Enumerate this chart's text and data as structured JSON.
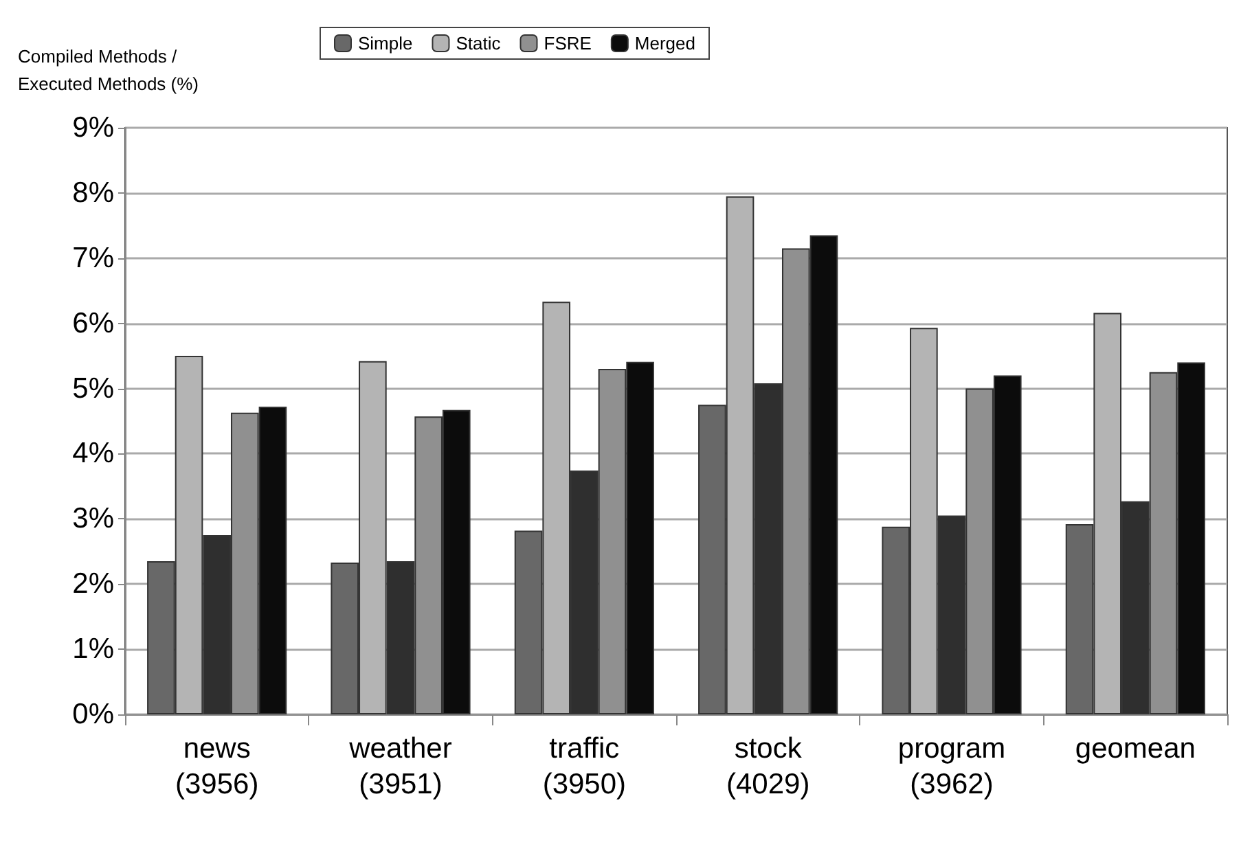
{
  "chart_data": {
    "type": "bar",
    "ylabel": "Compiled Methods /\nExecuted Methods (%)",
    "categories": [
      "news\n(3956)",
      "weather\n(3951)",
      "traffic\n(3950)",
      "stock\n(4029)",
      "program\n(3962)",
      "geomean"
    ],
    "series": [
      {
        "name": "Simple",
        "color": "#686868",
        "values": [
          2.35,
          2.33,
          2.82,
          4.75,
          2.88,
          2.92
        ]
      },
      {
        "name": "Static",
        "color": "#b4b4b4",
        "values": [
          5.5,
          5.42,
          6.33,
          7.95,
          5.93,
          6.16
        ]
      },
      {
        "color": "#2f2f2f",
        "values": [
          2.75,
          2.35,
          3.74,
          5.08,
          3.05,
          3.27
        ]
      },
      {
        "name": "FSRE",
        "color": "#909090",
        "values": [
          4.63,
          4.57,
          5.3,
          7.15,
          5.0,
          5.25
        ]
      },
      {
        "name": "Merged",
        "color": "#0c0c0c",
        "values": [
          4.72,
          4.67,
          5.41,
          7.35,
          5.2,
          5.4
        ]
      }
    ],
    "ylim": [
      0,
      9
    ],
    "yticks": [
      {
        "value": 0,
        "label": "0%"
      },
      {
        "value": 1,
        "label": "1%"
      },
      {
        "value": 2,
        "label": "2%"
      },
      {
        "value": 3,
        "label": "3%"
      },
      {
        "value": 4,
        "label": "4%"
      },
      {
        "value": 5,
        "label": "5%"
      },
      {
        "value": 6,
        "label": "6%"
      },
      {
        "value": 7,
        "label": "7%"
      },
      {
        "value": 8,
        "label": "8%"
      },
      {
        "value": 9,
        "label": "9%"
      }
    ],
    "grid": "y",
    "legend": "top"
  }
}
